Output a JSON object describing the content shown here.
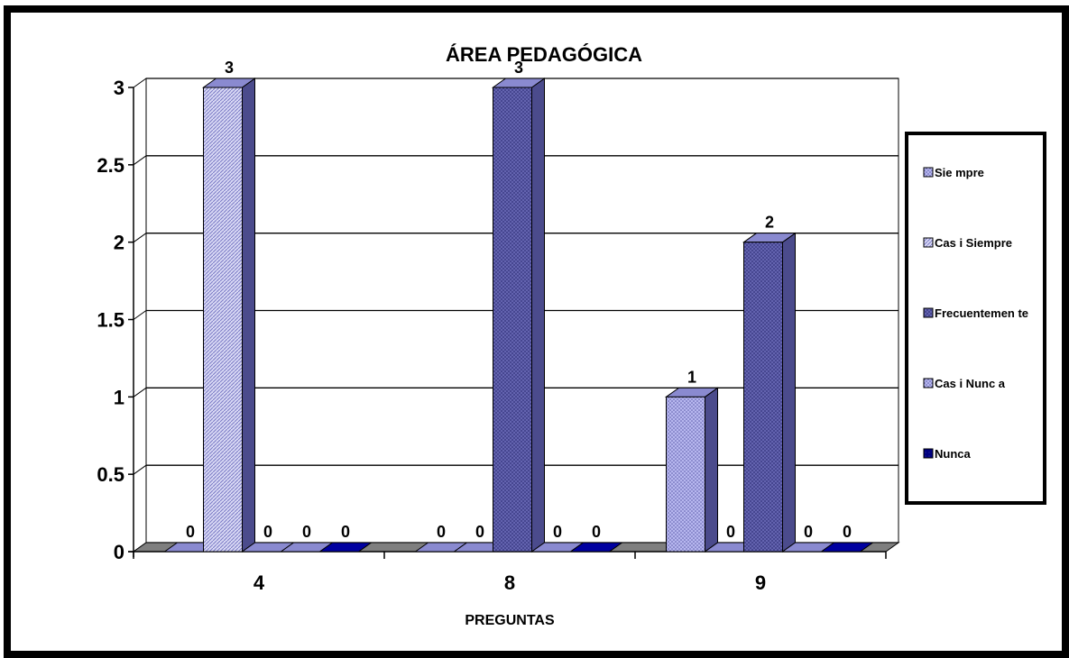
{
  "chart_data": {
    "type": "bar",
    "title": "ÁREA PEDAGÓGICA",
    "xlabel": "PREGUNTAS",
    "ylabel": "",
    "categories": [
      "4",
      "8",
      "9"
    ],
    "ylim": [
      0,
      3
    ],
    "yticks": [
      "0",
      "0.5",
      "1",
      "1.5",
      "2",
      "2.5",
      "3"
    ],
    "grid": true,
    "legend_position": "right",
    "series": [
      {
        "name": "Sie mpre",
        "values": [
          0,
          0,
          1
        ],
        "color": "#9c9ce8",
        "pattern": "dots"
      },
      {
        "name": "Cas i Siempre",
        "values": [
          3,
          0,
          0
        ],
        "color": "#c8c8f0",
        "pattern": "diagonal"
      },
      {
        "name": "Frecuentemen te",
        "values": [
          0,
          3,
          2
        ],
        "color": "#6666b4",
        "pattern": "crosshatch"
      },
      {
        "name": "Cas i Nunc a",
        "values": [
          0,
          0,
          0
        ],
        "color": "#b0b0e6",
        "pattern": "dots"
      },
      {
        "name": "Nunca",
        "values": [
          0,
          0,
          0
        ],
        "color": "#000080",
        "pattern": "dots"
      }
    ],
    "data_labels": [
      [
        "0",
        "3",
        "0",
        "0",
        "0"
      ],
      [
        "0",
        "0",
        "3",
        "0",
        "0"
      ],
      [
        "1",
        "0",
        "2",
        "0",
        "0"
      ]
    ]
  }
}
